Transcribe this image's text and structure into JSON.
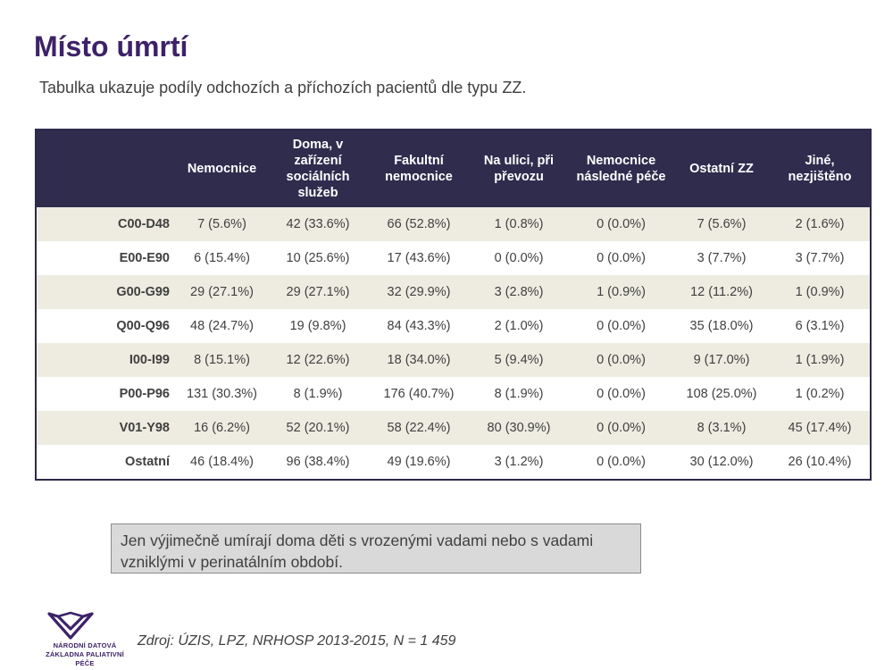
{
  "title": "Místo úmrtí",
  "subtitle": "Tabulka ukazuje podíly odchozích a příchozích pacientů dle typu ZZ.",
  "table": {
    "headers": [
      "",
      "Nemocnice",
      "Doma, v zařízení sociálních služeb",
      "Fakultní nemocnice",
      "Na ulici, při převozu",
      "Nemocnice následné péče",
      "Ostatní ZZ",
      "Jiné, nezjištěno"
    ],
    "rows": [
      [
        "C00-D48",
        "7 (5.6%)",
        "42 (33.6%)",
        "66 (52.8%)",
        "1 (0.8%)",
        "0 (0.0%)",
        "7 (5.6%)",
        "2 (1.6%)"
      ],
      [
        "E00-E90",
        "6 (15.4%)",
        "10 (25.6%)",
        "17 (43.6%)",
        "0 (0.0%)",
        "0 (0.0%)",
        "3 (7.7%)",
        "3 (7.7%)"
      ],
      [
        "G00-G99",
        "29 (27.1%)",
        "29 (27.1%)",
        "32 (29.9%)",
        "3 (2.8%)",
        "1 (0.9%)",
        "12 (11.2%)",
        "1 (0.9%)"
      ],
      [
        "Q00-Q96",
        "48 (24.7%)",
        "19 (9.8%)",
        "84 (43.3%)",
        "2 (1.0%)",
        "0 (0.0%)",
        "35 (18.0%)",
        "6 (3.1%)"
      ],
      [
        "I00-I99",
        "8 (15.1%)",
        "12 (22.6%)",
        "18 (34.0%)",
        "5 (9.4%)",
        "0 (0.0%)",
        "9 (17.0%)",
        "1 (1.9%)"
      ],
      [
        "P00-P96",
        "131 (30.3%)",
        "8 (1.9%)",
        "176 (40.7%)",
        "8 (1.9%)",
        "0 (0.0%)",
        "108 (25.0%)",
        "1 (0.2%)"
      ],
      [
        "V01-Y98",
        "16 (6.2%)",
        "52 (20.1%)",
        "58 (22.4%)",
        "80 (30.9%)",
        "0 (0.0%)",
        "8 (3.1%)",
        "45 (17.4%)"
      ],
      [
        "Ostatní",
        "46 (18.4%)",
        "96 (38.4%)",
        "49 (19.6%)",
        "3 (1.2%)",
        "0 (0.0%)",
        "30 (12.0%)",
        "26 (10.4%)"
      ]
    ]
  },
  "note": "Jen výjimečně umírají doma děti s vrozenými vadami nebo s vadami vzniklými v perinatálním období.",
  "logo": {
    "line1": "NÁRODNÍ DATOVÁ",
    "line2": "ZÁKLADNA PALIATIVNÍ PÉČE",
    "icon": "bird-wings-logo-icon",
    "color": "#3d2268"
  },
  "source": "Zdroj: ÚZIS, LPZ, NRHOSP 2013-2015, N = 1 459",
  "colors": {
    "title": "#3d2268",
    "header_bg": "#2f2c4e",
    "row_alt": "#eeece1",
    "note_bg": "#d9d9d9"
  }
}
